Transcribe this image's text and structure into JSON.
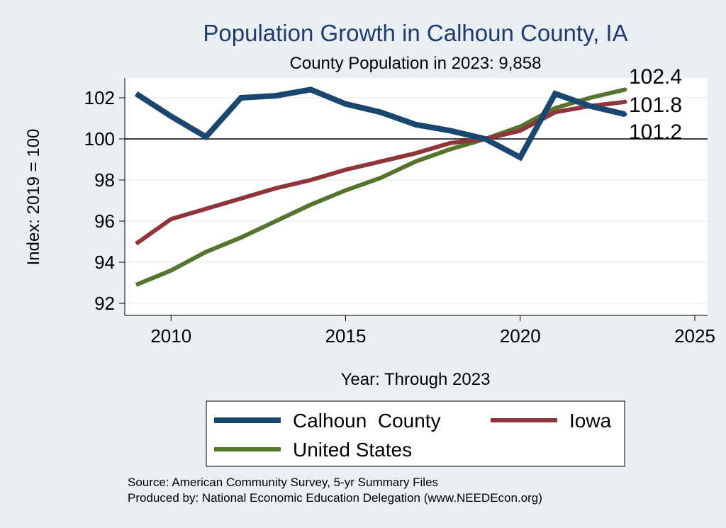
{
  "chart_data": {
    "type": "line",
    "title": "Population Growth in Calhoun County, IA",
    "subtitle": "County Population in 2023: 9,858",
    "xlabel": "Year: Through 2023",
    "ylabel": "Index: 2019 = 100",
    "xlim": [
      2009,
      2025
    ],
    "ylim": [
      91.6,
      103.3
    ],
    "xticks": [
      2010,
      2015,
      2020,
      2025
    ],
    "yticks": [
      92,
      94,
      96,
      98,
      100,
      102
    ],
    "reference_line": 100,
    "grid": true,
    "x": [
      2009,
      2010,
      2011,
      2012,
      2013,
      2014,
      2015,
      2016,
      2017,
      2018,
      2019,
      2020,
      2021,
      2022,
      2023
    ],
    "series": [
      {
        "name": "Calhoun  County",
        "color": "#1a476f",
        "end_label": "101.2",
        "values": [
          102.2,
          101.1,
          100.1,
          102.0,
          102.1,
          102.4,
          101.7,
          101.3,
          100.7,
          100.4,
          100.0,
          99.1,
          102.2,
          101.6,
          101.2
        ]
      },
      {
        "name": "Iowa",
        "color": "#90353b",
        "end_label": "101.8",
        "values": [
          94.9,
          96.1,
          96.6,
          97.1,
          97.6,
          98.0,
          98.5,
          98.9,
          99.3,
          99.8,
          100.0,
          100.4,
          101.3,
          101.6,
          101.8
        ]
      },
      {
        "name": "United States",
        "color": "#55752f",
        "end_label": "102.4",
        "values": [
          92.9,
          93.6,
          94.5,
          95.2,
          96.0,
          96.8,
          97.5,
          98.1,
          98.9,
          99.5,
          100.0,
          100.6,
          101.5,
          102.0,
          102.4
        ]
      }
    ],
    "legend": {
      "position": "bottom",
      "entries": [
        "Calhoun  County",
        "Iowa",
        "United States"
      ]
    },
    "source_lines": [
      "Source: American Community Survey, 5-yr Summary Files",
      "Produced by: National Economic Education Delegation (www.NEEDEcon.org)"
    ]
  }
}
